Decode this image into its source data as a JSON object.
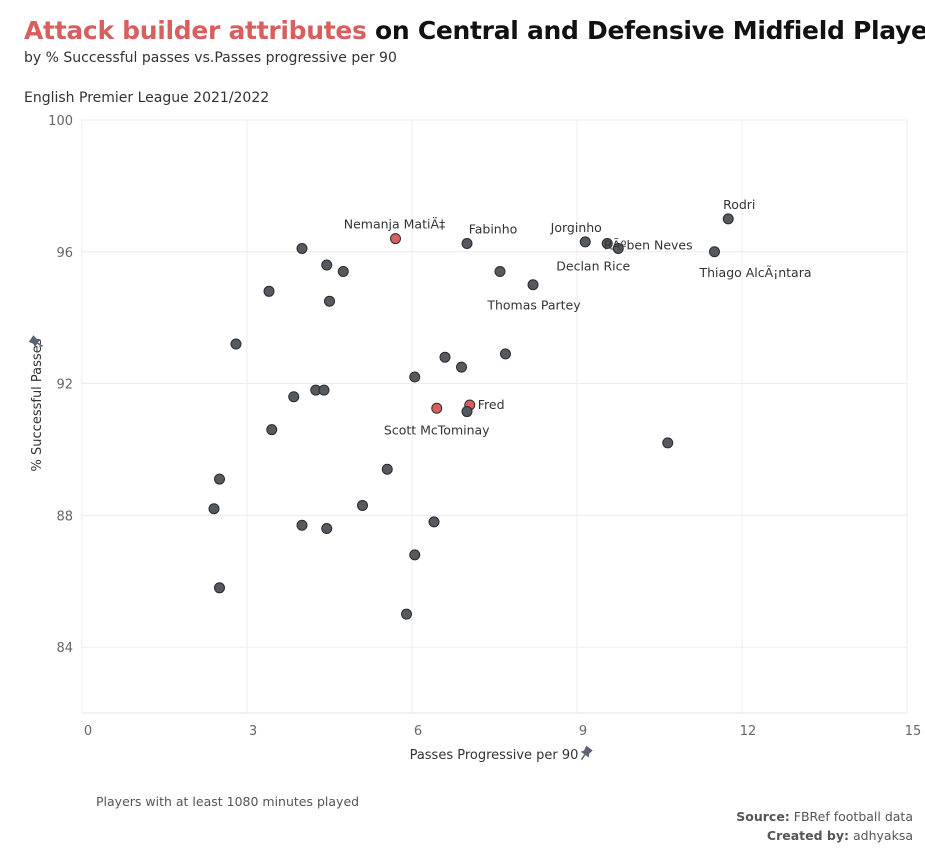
{
  "header": {
    "title_highlight": "Attack builder attributes",
    "title_rest": " on Central and Defensive Midfield Players",
    "subtitle": "by % Successful passes vs.Passes progressive per 90",
    "league": "English Premier League 2021/2022"
  },
  "footer": {
    "note": "Players with at least 1080 minutes played",
    "source_label": "Source:",
    "source_value": " FBRef football data",
    "created_label": "Created by:",
    "created_value": " adhyaksa"
  },
  "colors": {
    "highlight": "#d95f5f",
    "point": "#555a60",
    "grid": "#ececec",
    "pin": "#5a6273"
  },
  "chart_data": {
    "type": "scatter",
    "xlabel": "Passes Progressive per 90",
    "ylabel": "% Successful Passes",
    "xlim": [
      0,
      15
    ],
    "ylim": [
      82,
      100
    ],
    "xticks": [
      0,
      3,
      6,
      9,
      12,
      15
    ],
    "yticks": [
      84,
      88,
      92,
      96,
      100
    ],
    "grid": true,
    "points": [
      {
        "x": 11.75,
        "y": 97.0,
        "label": "Rodri",
        "highlight": false
      },
      {
        "x": 11.5,
        "y": 96.0,
        "label": "Thiago AlcÃ¡ntara",
        "highlight": false
      },
      {
        "x": 9.15,
        "y": 96.3,
        "label": "Jorginho",
        "highlight": false
      },
      {
        "x": 9.55,
        "y": 96.25,
        "label": "RÃºben Neves",
        "highlight": false
      },
      {
        "x": 9.75,
        "y": 96.1,
        "label": "Declan Rice",
        "highlight": false
      },
      {
        "x": 7.0,
        "y": 96.25,
        "label": "Fabinho",
        "highlight": false
      },
      {
        "x": 5.7,
        "y": 96.4,
        "label": "Nemanja MatiÄ‡",
        "highlight": true
      },
      {
        "x": 8.2,
        "y": 95.0,
        "label": "Thomas Partey",
        "highlight": false
      },
      {
        "x": 7.6,
        "y": 95.4,
        "label": "",
        "highlight": false
      },
      {
        "x": 7.05,
        "y": 91.35,
        "label": "Fred",
        "highlight": true
      },
      {
        "x": 6.45,
        "y": 91.25,
        "label": "Scott McTominay",
        "highlight": true
      },
      {
        "x": 7.0,
        "y": 91.15,
        "label": "",
        "highlight": false
      },
      {
        "x": 4.0,
        "y": 96.1,
        "label": "",
        "highlight": false
      },
      {
        "x": 4.45,
        "y": 95.6,
        "label": "",
        "highlight": false
      },
      {
        "x": 4.75,
        "y": 95.4,
        "label": "",
        "highlight": false
      },
      {
        "x": 3.4,
        "y": 94.8,
        "label": "",
        "highlight": false
      },
      {
        "x": 4.5,
        "y": 94.5,
        "label": "",
        "highlight": false
      },
      {
        "x": 2.8,
        "y": 93.2,
        "label": "",
        "highlight": false
      },
      {
        "x": 6.6,
        "y": 92.8,
        "label": "",
        "highlight": false
      },
      {
        "x": 7.7,
        "y": 92.9,
        "label": "",
        "highlight": false
      },
      {
        "x": 6.9,
        "y": 92.5,
        "label": "",
        "highlight": false
      },
      {
        "x": 6.05,
        "y": 92.2,
        "label": "",
        "highlight": false
      },
      {
        "x": 4.25,
        "y": 91.8,
        "label": "",
        "highlight": false
      },
      {
        "x": 4.4,
        "y": 91.8,
        "label": "",
        "highlight": false
      },
      {
        "x": 3.85,
        "y": 91.6,
        "label": "",
        "highlight": false
      },
      {
        "x": 3.45,
        "y": 90.6,
        "label": "",
        "highlight": false
      },
      {
        "x": 10.65,
        "y": 90.2,
        "label": "",
        "highlight": false
      },
      {
        "x": 5.55,
        "y": 89.4,
        "label": "",
        "highlight": false
      },
      {
        "x": 2.5,
        "y": 89.1,
        "label": "",
        "highlight": false
      },
      {
        "x": 2.4,
        "y": 88.2,
        "label": "",
        "highlight": false
      },
      {
        "x": 5.1,
        "y": 88.3,
        "label": "",
        "highlight": false
      },
      {
        "x": 4.0,
        "y": 87.7,
        "label": "",
        "highlight": false
      },
      {
        "x": 4.45,
        "y": 87.6,
        "label": "",
        "highlight": false
      },
      {
        "x": 6.4,
        "y": 87.8,
        "label": "",
        "highlight": false
      },
      {
        "x": 6.05,
        "y": 86.8,
        "label": "",
        "highlight": false
      },
      {
        "x": 2.5,
        "y": 85.8,
        "label": "",
        "highlight": false
      },
      {
        "x": 5.9,
        "y": 85.0,
        "label": "",
        "highlight": false
      }
    ]
  }
}
